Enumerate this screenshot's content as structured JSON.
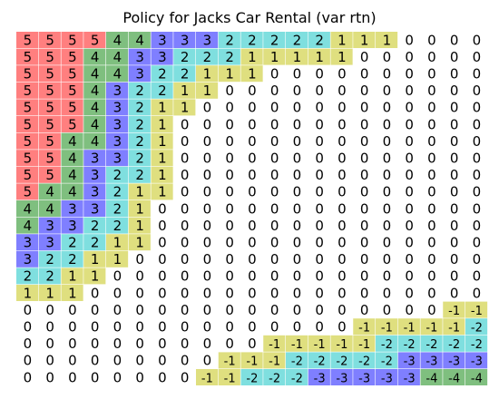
{
  "chart_data": {
    "type": "heatmap",
    "title": "Policy for Jacks Car Rental (var rtn)",
    "xlabel": "",
    "ylabel": "",
    "grid": false,
    "rows": 21,
    "cols": 21,
    "value_colors": {
      "5": "#ff7f7f",
      "4": "#7fbf7f",
      "3": "#7f7fff",
      "2": "#7fdfdf",
      "1": "#dfdf7f",
      "0": "#ffffff",
      "-1": "#dfdf7f",
      "-2": "#7fdfdf",
      "-3": "#7f7fff",
      "-4": "#7fbf7f",
      "-5": "#ff7f7f"
    },
    "values": [
      [
        5,
        5,
        5,
        5,
        4,
        4,
        3,
        3,
        3,
        2,
        2,
        2,
        2,
        2,
        1,
        1,
        1,
        0,
        0,
        0,
        0
      ],
      [
        5,
        5,
        5,
        4,
        4,
        3,
        3,
        2,
        2,
        2,
        1,
        1,
        1,
        1,
        1,
        0,
        0,
        0,
        0,
        0,
        0
      ],
      [
        5,
        5,
        5,
        4,
        4,
        3,
        2,
        2,
        1,
        1,
        1,
        0,
        0,
        0,
        0,
        0,
        0,
        0,
        0,
        0,
        0
      ],
      [
        5,
        5,
        5,
        4,
        3,
        2,
        2,
        1,
        1,
        0,
        0,
        0,
        0,
        0,
        0,
        0,
        0,
        0,
        0,
        0,
        0
      ],
      [
        5,
        5,
        5,
        4,
        3,
        2,
        1,
        1,
        0,
        0,
        0,
        0,
        0,
        0,
        0,
        0,
        0,
        0,
        0,
        0,
        0
      ],
      [
        5,
        5,
        5,
        4,
        3,
        2,
        1,
        0,
        0,
        0,
        0,
        0,
        0,
        0,
        0,
        0,
        0,
        0,
        0,
        0,
        0
      ],
      [
        5,
        5,
        4,
        4,
        3,
        2,
        1,
        0,
        0,
        0,
        0,
        0,
        0,
        0,
        0,
        0,
        0,
        0,
        0,
        0,
        0
      ],
      [
        5,
        5,
        4,
        3,
        3,
        2,
        1,
        0,
        0,
        0,
        0,
        0,
        0,
        0,
        0,
        0,
        0,
        0,
        0,
        0,
        0
      ],
      [
        5,
        5,
        4,
        3,
        2,
        2,
        1,
        0,
        0,
        0,
        0,
        0,
        0,
        0,
        0,
        0,
        0,
        0,
        0,
        0,
        0
      ],
      [
        5,
        4,
        4,
        3,
        2,
        1,
        1,
        0,
        0,
        0,
        0,
        0,
        0,
        0,
        0,
        0,
        0,
        0,
        0,
        0,
        0
      ],
      [
        4,
        4,
        3,
        3,
        2,
        1,
        0,
        0,
        0,
        0,
        0,
        0,
        0,
        0,
        0,
        0,
        0,
        0,
        0,
        0,
        0
      ],
      [
        4,
        3,
        3,
        2,
        2,
        1,
        0,
        0,
        0,
        0,
        0,
        0,
        0,
        0,
        0,
        0,
        0,
        0,
        0,
        0,
        0
      ],
      [
        3,
        3,
        2,
        2,
        1,
        1,
        0,
        0,
        0,
        0,
        0,
        0,
        0,
        0,
        0,
        0,
        0,
        0,
        0,
        0,
        0
      ],
      [
        3,
        2,
        2,
        1,
        1,
        0,
        0,
        0,
        0,
        0,
        0,
        0,
        0,
        0,
        0,
        0,
        0,
        0,
        0,
        0,
        0
      ],
      [
        2,
        2,
        1,
        1,
        0,
        0,
        0,
        0,
        0,
        0,
        0,
        0,
        0,
        0,
        0,
        0,
        0,
        0,
        0,
        0,
        0
      ],
      [
        1,
        1,
        1,
        0,
        0,
        0,
        0,
        0,
        0,
        0,
        0,
        0,
        0,
        0,
        0,
        0,
        0,
        0,
        0,
        0,
        0
      ],
      [
        0,
        0,
        0,
        0,
        0,
        0,
        0,
        0,
        0,
        0,
        0,
        0,
        0,
        0,
        0,
        0,
        0,
        0,
        0,
        -1,
        -1
      ],
      [
        0,
        0,
        0,
        0,
        0,
        0,
        0,
        0,
        0,
        0,
        0,
        0,
        0,
        0,
        0,
        -1,
        -1,
        -1,
        -1,
        -1,
        -2
      ],
      [
        0,
        0,
        0,
        0,
        0,
        0,
        0,
        0,
        0,
        0,
        0,
        -1,
        -1,
        -1,
        -1,
        -1,
        -2,
        -2,
        -2,
        -2,
        -2
      ],
      [
        0,
        0,
        0,
        0,
        0,
        0,
        0,
        0,
        0,
        -1,
        -1,
        -1,
        -2,
        -2,
        -2,
        -2,
        -2,
        -3,
        -3,
        -3,
        -3
      ],
      [
        0,
        0,
        0,
        0,
        0,
        0,
        0,
        0,
        -1,
        -1,
        -2,
        -2,
        -2,
        -3,
        -3,
        -3,
        -3,
        -3,
        -4,
        -4,
        -4
      ]
    ]
  }
}
